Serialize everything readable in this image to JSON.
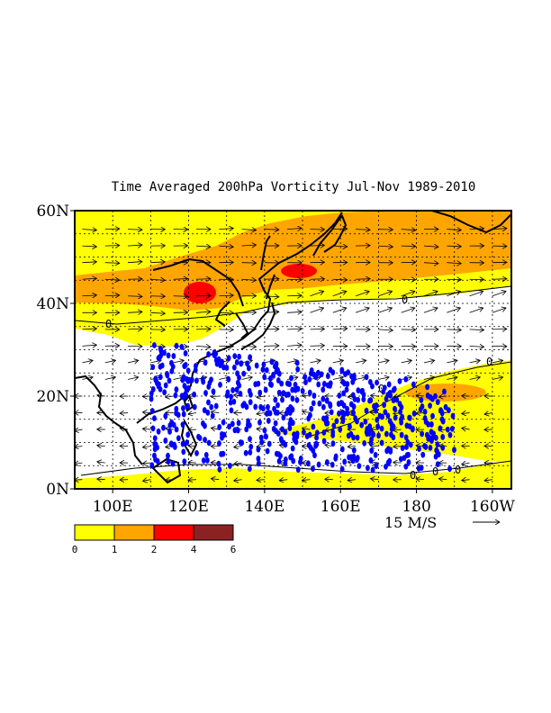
{
  "title": "Time Averaged 200hPa Vorticity  Jul-Nov 1989-2010",
  "map": {
    "lon_range": [
      90,
      205
    ],
    "lat_range": [
      0,
      60
    ],
    "lon_ticks": [
      {
        "lon": 100,
        "label": "100E"
      },
      {
        "lon": 120,
        "label": "120E"
      },
      {
        "lon": 140,
        "label": "140E"
      },
      {
        "lon": 160,
        "label": "160E"
      },
      {
        "lon": 180,
        "label": "180"
      },
      {
        "lon": 200,
        "label": "160W"
      }
    ],
    "lat_ticks": [
      {
        "lat": 0,
        "label": "0N"
      },
      {
        "lat": 20,
        "label": "20N"
      },
      {
        "lat": 40,
        "label": "40N"
      },
      {
        "lat": 60,
        "label": "60N"
      }
    ],
    "grid_lon": [
      100,
      110,
      120,
      130,
      140,
      150,
      160,
      170,
      180,
      190,
      200
    ],
    "grid_lat": [
      5,
      10,
      15,
      20,
      25,
      30,
      35,
      40,
      45,
      50,
      55
    ],
    "contour_zero_label": "0"
  },
  "colorbar": {
    "levels": [
      "0",
      "1",
      "2",
      "4",
      "6"
    ],
    "colors": [
      "#ffff00",
      "#ffa500",
      "#ff0000",
      "#8b2222"
    ]
  },
  "reference_vector": {
    "label": "15 M/S",
    "speed": 15
  },
  "colors": {
    "positive_low": "#ffff00",
    "positive_mid": "#ffa500",
    "positive_high": "#ff0000",
    "points": "#0000ff"
  }
}
